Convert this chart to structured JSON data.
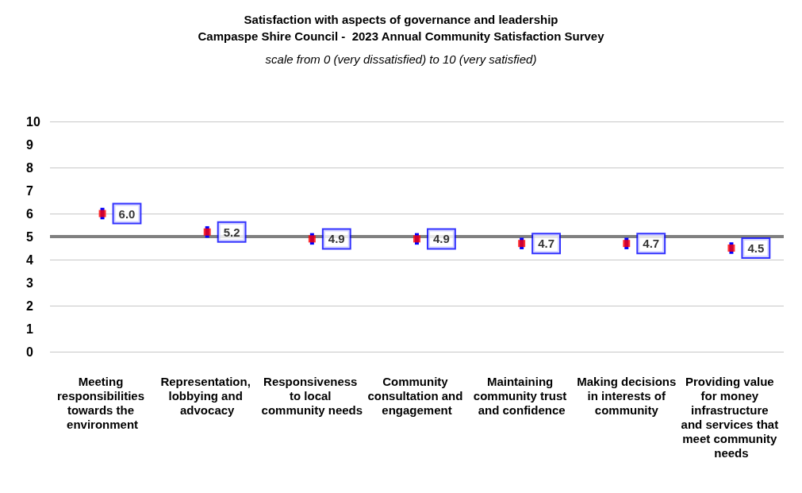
{
  "chart_data": {
    "type": "scatter",
    "title": "Satisfaction with aspects of governance and leadership",
    "subtitle": "Campaspe Shire Council -  2023 Annual Community Satisfaction Survey",
    "annotations": [
      "scale from 0 (very dissatisfied) to 10 (very satisfied)"
    ],
    "categories": [
      "Meeting responsibilities towards the environment",
      "Representation, lobbying and advocacy",
      "Responsiveness to local community needs",
      "Community consultation and engagement",
      "Maintaining community trust and confidence",
      "Making decisions in interests of community",
      "Providing value for money infrastructure and services that meet community needs"
    ],
    "series": [
      {
        "color": "#ff0000",
        "values": [
          6.0,
          5.2,
          4.9,
          4.9,
          4.7,
          4.7,
          4.5
        ],
        "value_labels": [
          "6.0",
          "5.2",
          "4.9",
          "4.9",
          "4.7",
          "4.7",
          "4.5"
        ],
        "errors": [
          0.25,
          0.25,
          0.25,
          0.25,
          0.25,
          0.25,
          0.25
        ]
      }
    ],
    "ylim": [
      0,
      10
    ],
    "yticks": [
      0,
      1,
      2,
      3,
      4,
      5,
      6,
      7,
      8,
      9,
      10
    ],
    "grid": "y",
    "marker": "square",
    "ref_lines": [
      {
        "axis": "y",
        "value": 5,
        "color": "#808080"
      }
    ]
  }
}
